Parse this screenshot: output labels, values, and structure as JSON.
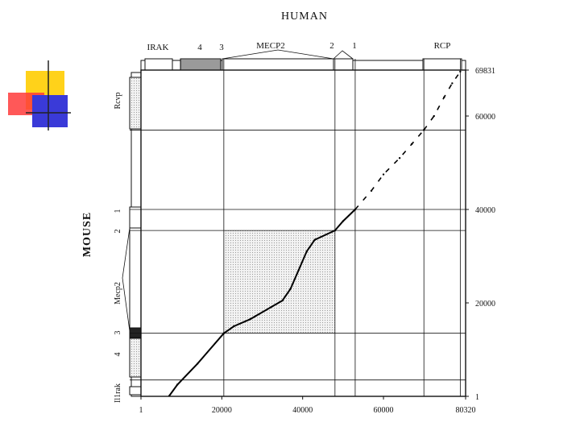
{
  "figure": {
    "top_title": "HUMAN",
    "side_title": "MOUSE"
  },
  "human_genes": [
    "IRAK",
    "4",
    "3",
    "MECP2",
    "2",
    "1",
    "RCP"
  ],
  "mouse_genes": [
    "Rcvp",
    "1",
    "2",
    "Mecp2",
    "3",
    "4",
    "Il1rak"
  ],
  "chart_data": {
    "type": "scatter",
    "title": "",
    "x_ticks": [
      "1",
      "20000",
      "40000",
      "60000",
      "80320"
    ],
    "y_ticks": [
      "1",
      "20000",
      "40000",
      "60000",
      "69831"
    ],
    "xlim": [
      1,
      80320
    ],
    "ylim": [
      1,
      69831
    ],
    "grid": false,
    "highlight_region": {
      "x": [
        20500,
        48000
      ],
      "y": [
        13500,
        35500
      ]
    },
    "vertical_lines_x": [
      20500,
      48000,
      53000,
      70000,
      79000
    ],
    "horizontal_lines_y": [
      3500,
      13500,
      35500,
      40000,
      57000
    ],
    "dot_plot_segments": [
      {
        "solid": true,
        "points": [
          [
            7000,
            100
          ],
          [
            9000,
            2500
          ],
          [
            14000,
            7000
          ],
          [
            20500,
            13500
          ]
        ]
      },
      {
        "solid": true,
        "points": [
          [
            20500,
            13500
          ],
          [
            23000,
            15000
          ],
          [
            27000,
            16500
          ],
          [
            32000,
            19000
          ],
          [
            35000,
            20500
          ],
          [
            37000,
            23000
          ],
          [
            39000,
            27000
          ],
          [
            41000,
            31000
          ],
          [
            43000,
            33500
          ],
          [
            48000,
            35500
          ]
        ]
      },
      {
        "solid": true,
        "points": [
          [
            48000,
            35500
          ],
          [
            50000,
            37500
          ],
          [
            53000,
            40000
          ]
        ]
      },
      {
        "solid": false,
        "points": [
          [
            53000,
            40000
          ],
          [
            57000,
            44000
          ],
          [
            60000,
            47500
          ],
          [
            64000,
            51000
          ],
          [
            67000,
            54000
          ],
          [
            70000,
            57000
          ]
        ]
      },
      {
        "solid": false,
        "points": [
          [
            70000,
            57000
          ],
          [
            72500,
            60000
          ],
          [
            75000,
            64000
          ],
          [
            77000,
            67000
          ],
          [
            79000,
            69500
          ]
        ]
      }
    ]
  }
}
